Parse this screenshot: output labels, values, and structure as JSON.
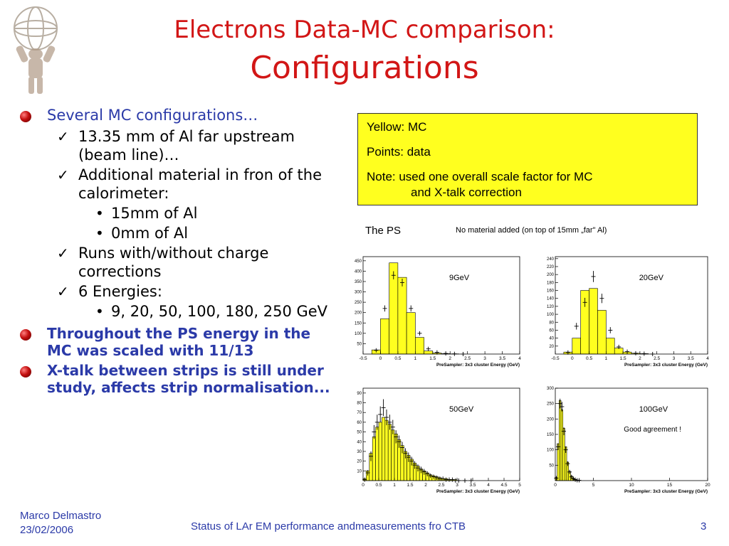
{
  "title": {
    "line1": "Electrons Data-MC comparison:",
    "line2": "Configurations"
  },
  "bullets": {
    "b1": "Several MC configurations…",
    "b1_items": {
      "i1": "13.35 mm of Al far upstream (beam line)…",
      "i2": "Additional material in fron of the calorimeter:",
      "i2_sub": [
        "15mm of Al",
        "0mm of Al"
      ],
      "i3": "Runs with/without charge corrections",
      "i4": "6 Energies:",
      "i4_sub": [
        "9, 20, 50, 100, 180, 250 GeV"
      ]
    },
    "b2": "Throughout the PS energy in the MC was scaled with 11/13",
    "b3": "X-talk between strips is still under study, affects strip normalisation..."
  },
  "note_box": {
    "line1": "Yellow: MC",
    "line2": "Points: data",
    "line3a": "Note: used one overall scale factor for MC",
    "line3b": "and X-talk correction"
  },
  "ps_header": {
    "title": "The PS",
    "subtitle": "No material added (on top of 15mm „far\" Al)"
  },
  "footer": {
    "author": "Marco Delmastro",
    "date": "23/02/2006",
    "center": "Status of LAr EM performance andmeasurements fro CTB",
    "page": "3"
  },
  "colors": {
    "title": "#d21616",
    "bullet_text": "#2b3aa8",
    "mc_fill": "#ffff1f",
    "note_bg": "#ffff1f"
  },
  "chart_data": [
    {
      "type": "bar",
      "label": "9GeV",
      "xlabel": "PreSampler: 3x3 cluster Energy (GeV)",
      "xlim": [
        -0.5,
        4
      ],
      "ylim": [
        0,
        470
      ],
      "xticks": [
        "-0.5",
        "0",
        "0.5",
        "1",
        "1.5",
        "2",
        "2.5",
        "3",
        "3.5",
        "4"
      ],
      "yticks": [
        "50",
        "100",
        "150",
        "200",
        "250",
        "300",
        "350",
        "400",
        "450"
      ],
      "bin_width": 0.25,
      "x": [
        -0.25,
        0,
        0.25,
        0.5,
        0.75,
        1,
        1.25,
        1.5,
        1.75,
        2,
        2.25
      ],
      "mc": [
        20,
        170,
        440,
        370,
        200,
        80,
        15,
        5,
        2,
        1,
        0
      ],
      "data": [
        18,
        220,
        380,
        345,
        220,
        100,
        25,
        8,
        3,
        1,
        0
      ]
    },
    {
      "type": "bar",
      "label": "20GeV",
      "xlabel": "PreSampler: 3x3 cluster Energy (GeV)",
      "xlim": [
        -0.5,
        4
      ],
      "ylim": [
        0,
        245
      ],
      "xticks": [
        "-0.5",
        "0",
        "0.5",
        "1",
        "1.5",
        "2",
        "2.5",
        "3",
        "3.5",
        "4"
      ],
      "yticks": [
        "20",
        "40",
        "60",
        "80",
        "100",
        "120",
        "140",
        "160",
        "180",
        "200",
        "220",
        "240"
      ],
      "bin_width": 0.25,
      "x": [
        -0.25,
        0,
        0.25,
        0.5,
        0.75,
        1,
        1.25,
        1.5,
        1.75,
        2,
        2.25
      ],
      "mc": [
        5,
        40,
        160,
        165,
        110,
        40,
        15,
        5,
        2,
        1,
        0
      ],
      "data": [
        4,
        70,
        130,
        195,
        140,
        60,
        18,
        6,
        2,
        1,
        0
      ]
    },
    {
      "type": "bar",
      "label": "50GeV",
      "xlabel": "PreSampler: 3x3 cluster Energy (GeV)",
      "xlim": [
        0,
        5
      ],
      "ylim": [
        0,
        95
      ],
      "xticks": [
        "0",
        "0.5",
        "1",
        "1.5",
        "2",
        "2.5",
        "3",
        "3.5",
        "4",
        "4.5",
        "5"
      ],
      "yticks": [
        "10",
        "20",
        "30",
        "40",
        "50",
        "60",
        "70",
        "80",
        "90"
      ],
      "bin_width": 0.1,
      "x": [
        0,
        0.1,
        0.2,
        0.3,
        0.4,
        0.5,
        0.6,
        0.7,
        0.8,
        0.9,
        1.0,
        1.1,
        1.2,
        1.3,
        1.4,
        1.5,
        1.6,
        1.7,
        1.8,
        1.9,
        2.0,
        2.1,
        2.2,
        2.3,
        2.4,
        2.5,
        2.6,
        2.7,
        2.8,
        2.9,
        3.0,
        3.2,
        3.4
      ],
      "mc": [
        2,
        10,
        28,
        45,
        55,
        60,
        65,
        62,
        58,
        52,
        48,
        42,
        36,
        30,
        26,
        22,
        18,
        15,
        12,
        10,
        8,
        6,
        5,
        4,
        3,
        2,
        2,
        1,
        1,
        1,
        0,
        0,
        0
      ],
      "data": [
        1,
        8,
        25,
        50,
        60,
        68,
        75,
        65,
        60,
        55,
        45,
        40,
        34,
        28,
        24,
        20,
        16,
        13,
        11,
        9,
        7,
        5,
        4,
        3,
        2,
        2,
        1,
        1,
        1,
        0,
        0,
        0,
        0
      ]
    },
    {
      "type": "bar",
      "label": "100GeV",
      "annotation": "Good agreement !",
      "xlabel": "PreSampler: 3x3 cluster Energy (GeV)",
      "xlim": [
        0,
        20
      ],
      "ylim": [
        0,
        300
      ],
      "xticks": [
        "0",
        "5",
        "10",
        "15",
        "20"
      ],
      "yticks": [
        "50",
        "100",
        "150",
        "200",
        "250",
        "300"
      ],
      "bin_width": 0.25,
      "x": [
        0,
        0.25,
        0.5,
        0.75,
        1,
        1.25,
        1.5,
        1.75,
        2,
        2.25,
        2.5,
        2.75,
        3
      ],
      "mc": [
        10,
        120,
        260,
        230,
        170,
        110,
        60,
        30,
        15,
        8,
        4,
        2,
        1
      ],
      "data": [
        8,
        110,
        250,
        240,
        160,
        100,
        55,
        28,
        12,
        6,
        3,
        1,
        1
      ]
    }
  ]
}
